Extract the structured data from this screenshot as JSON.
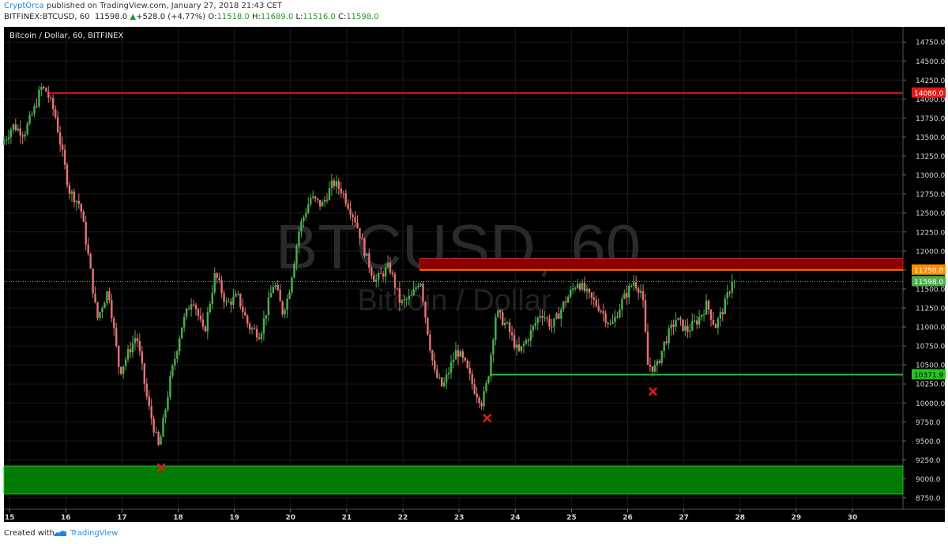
{
  "header": {
    "author": "CryptOrca",
    "published_text": "published on TradingView.com, January 27, 2018 21:43 CET",
    "symbol": "BITFINEX:BTCUSD, 60",
    "last": "11598.0",
    "change": "+528.0 (+4.77%)",
    "change_arrow": "▲",
    "o_label": "O:",
    "o": "11518.0",
    "h_label": "H:",
    "h": "11689.0",
    "l_label": "L:",
    "l": "11516.0",
    "c_label": "C:",
    "c": "11598.0"
  },
  "footer": {
    "created_with": "Created with",
    "brand": "TradingView"
  },
  "colors": {
    "background": "#000000",
    "up_candle": "#4caf50",
    "down_candle": "#e57373",
    "resistance": "#e21a1a",
    "support": "#22c622",
    "zone_red": "#8b0000",
    "zone_green": "#007a00"
  },
  "chart_data": {
    "type": "candlestick",
    "title": "Bitcoin / Dollar, 60, BITFINEX",
    "watermark_symbol": "BTCUSD, 60",
    "watermark_name": "Bitcoin / Dollar",
    "ylim": [
      8600,
      14950
    ],
    "y_ticks": [
      8750,
      9000,
      9250,
      9500,
      9750,
      10000,
      10250,
      10500,
      10750,
      11000,
      11250,
      11500,
      11750,
      12000,
      12250,
      12500,
      12750,
      13000,
      13250,
      13500,
      13750,
      14000,
      14250,
      14500,
      14750
    ],
    "y_tick_labels": [
      "8750.0",
      "9000.0",
      "9250.0",
      "9500.0",
      "9750.0",
      "10000.0",
      "10250.0",
      "10500.0",
      "10750.0",
      "11000.0",
      "11250.0",
      "11500.0",
      "11750.0",
      "12000.0",
      "12250.0",
      "12500.0",
      "12750.0",
      "13000.0",
      "13250.0",
      "13500.0",
      "13750.0",
      "14000.0",
      "14250.0",
      "14500.0",
      "14750.0"
    ],
    "x_ticks": [
      15,
      16,
      17,
      18,
      19,
      20,
      21,
      22,
      23,
      24,
      25,
      26,
      27,
      28,
      29,
      30
    ],
    "x_tick_labels": [
      "15",
      "16",
      "17",
      "18",
      "19",
      "20",
      "21",
      "22",
      "23",
      "24",
      "25",
      "26",
      "27",
      "28",
      "29",
      "30"
    ],
    "xlim": [
      14.9,
      30.9
    ],
    "price_anchors": [
      [
        14.9,
        13400
      ],
      [
        15.1,
        13650
      ],
      [
        15.3,
        13550
      ],
      [
        15.5,
        13900
      ],
      [
        15.6,
        14150
      ],
      [
        15.7,
        14100
      ],
      [
        15.85,
        13800
      ],
      [
        16.1,
        12800
      ],
      [
        16.3,
        12600
      ],
      [
        16.45,
        11900
      ],
      [
        16.6,
        11100
      ],
      [
        16.8,
        11500
      ],
      [
        17.0,
        10400
      ],
      [
        17.3,
        10900
      ],
      [
        17.5,
        10000
      ],
      [
        17.7,
        9400
      ],
      [
        17.9,
        10300
      ],
      [
        18.1,
        11000
      ],
      [
        18.3,
        11400
      ],
      [
        18.5,
        10900
      ],
      [
        18.7,
        11700
      ],
      [
        18.9,
        11300
      ],
      [
        19.1,
        11400
      ],
      [
        19.3,
        11000
      ],
      [
        19.5,
        10900
      ],
      [
        19.75,
        11600
      ],
      [
        19.9,
        11200
      ],
      [
        20.0,
        11400
      ],
      [
        20.2,
        12300
      ],
      [
        20.4,
        12700
      ],
      [
        20.6,
        12600
      ],
      [
        20.8,
        12900
      ],
      [
        20.95,
        12800
      ],
      [
        21.2,
        12400
      ],
      [
        21.4,
        11900
      ],
      [
        21.55,
        11600
      ],
      [
        21.8,
        11800
      ],
      [
        22.0,
        11300
      ],
      [
        22.2,
        11400
      ],
      [
        22.35,
        11650
      ],
      [
        22.45,
        11100
      ],
      [
        22.6,
        10400
      ],
      [
        22.75,
        10200
      ],
      [
        23.0,
        10700
      ],
      [
        23.15,
        10500
      ],
      [
        23.3,
        10200
      ],
      [
        23.45,
        10000
      ],
      [
        23.55,
        10300
      ],
      [
        23.7,
        11200
      ],
      [
        23.9,
        11000
      ],
      [
        24.1,
        10650
      ],
      [
        24.3,
        10900
      ],
      [
        24.5,
        11200
      ],
      [
        24.7,
        11000
      ],
      [
        24.9,
        11300
      ],
      [
        25.15,
        11600
      ],
      [
        25.35,
        11400
      ],
      [
        25.55,
        11250
      ],
      [
        25.75,
        11000
      ],
      [
        25.95,
        11350
      ],
      [
        26.15,
        11600
      ],
      [
        26.3,
        11450
      ],
      [
        26.4,
        10500
      ],
      [
        26.55,
        10450
      ],
      [
        26.7,
        10800
      ],
      [
        26.9,
        11100
      ],
      [
        27.1,
        10950
      ],
      [
        27.3,
        11100
      ],
      [
        27.45,
        11300
      ],
      [
        27.6,
        11000
      ],
      [
        27.75,
        11250
      ],
      [
        27.9,
        11598
      ]
    ],
    "candles_end": 27.9,
    "last_price": 11598.0,
    "last_price_label": "11598.0",
    "levels": [
      {
        "name": "resistance-line",
        "value": 14080.0,
        "label": "14080.0",
        "x_start": 15.7
      },
      {
        "name": "resistance-zone-line",
        "value": 11750.0,
        "label": "11750.0",
        "x_start": 22.3
      },
      {
        "name": "support-line",
        "value": 10371.9,
        "label": "10371.9",
        "x_start": 23.55
      }
    ],
    "zones": [
      {
        "name": "resistance-zone",
        "from": 11750,
        "to": 11900,
        "x_start": 22.3
      },
      {
        "name": "support-zone",
        "from": 8800,
        "to": 9170,
        "x_start": 14.9
      }
    ],
    "markers": [
      {
        "name": "low-marker",
        "x": 17.7,
        "y": 9150
      },
      {
        "name": "low-marker",
        "x": 23.5,
        "y": 9800
      },
      {
        "name": "low-marker",
        "x": 26.45,
        "y": 10150
      }
    ]
  }
}
